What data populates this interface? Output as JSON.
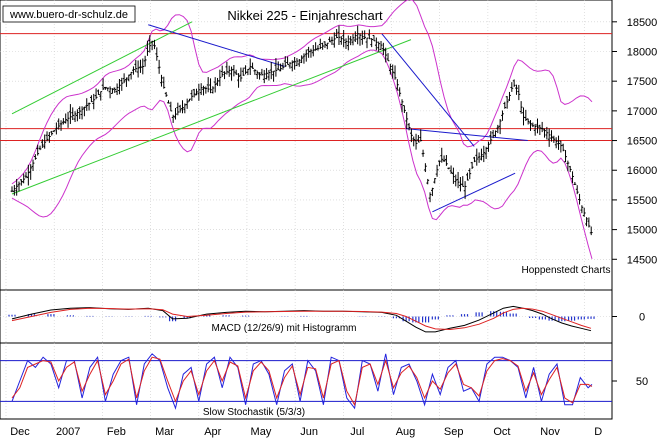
{
  "header": {
    "title": "Nikkei 225 - Einjahreschart",
    "watermark": "www.buero-dr-schulz.de"
  },
  "source_label": "Hoppenstedt Charts",
  "colors": {
    "price_bars": "#000000",
    "bollinger": "#cc33cc",
    "uptrend": "#33cc33",
    "downtrend": "#1a1acc",
    "support_resistance": "#dd2222",
    "macd_line": "#000000",
    "macd_signal": "#dd2222",
    "histogram": "#2233cc",
    "stoch_k": "#2222dd",
    "stoch_d": "#dd2222",
    "stoch_bands": "#1a1acc",
    "grid": "#cccccc"
  },
  "chart_data": [
    {
      "id": "price",
      "type": "ohlc",
      "title": "Nikkei 225 - Einjahreschart",
      "x_labels": [
        "Dec",
        "2007",
        "Feb",
        "Mar",
        "Apr",
        "May",
        "Jun",
        "Jul",
        "Aug",
        "Sep",
        "Oct",
        "Nov",
        "D"
      ],
      "y_ticks": [
        14500,
        15000,
        15500,
        16000,
        16500,
        17000,
        17500,
        18000,
        18500
      ],
      "ylim": [
        14050,
        18800
      ],
      "grid": true,
      "series": [
        {
          "name": "close",
          "x": [
            0,
            15,
            30,
            45,
            55,
            70,
            85,
            95,
            105,
            115,
            125,
            135,
            140,
            145,
            155,
            165,
            175,
            185,
            195,
            205,
            215,
            225,
            235,
            245,
            255,
            265,
            275,
            285,
            295,
            305,
            315,
            325,
            335,
            345,
            355,
            360,
            370,
            380,
            385,
            395,
            405,
            410,
            415,
            420,
            425,
            430,
            435,
            440,
            445,
            455,
            465,
            475,
            485,
            495,
            500,
            505,
            510,
            515,
            520,
            525,
            535,
            545,
            555,
            565,
            575,
            585,
            590,
            595
          ],
          "values": [
            15650,
            15900,
            16400,
            16700,
            16850,
            17000,
            17200,
            17400,
            17350,
            17500,
            17700,
            17750,
            18050,
            18200,
            17450,
            16900,
            17050,
            17250,
            17400,
            17350,
            17600,
            17700,
            17550,
            17750,
            17600,
            17650,
            17700,
            17800,
            17850,
            18000,
            18050,
            18150,
            18250,
            18150,
            18300,
            18250,
            18200,
            18100,
            17900,
            17500,
            16900,
            16600,
            16450,
            16500,
            16050,
            15550,
            15900,
            16200,
            16150,
            15850,
            15700,
            16150,
            16300,
            16600,
            16750,
            17000,
            17200,
            17450,
            17350,
            16900,
            16750,
            16700,
            16550,
            16400,
            15950,
            15400,
            15200,
            14950
          ]
        }
      ],
      "lines": {
        "uptrend_upper": {
          "x": [
            0,
            185
          ],
          "y": [
            16950,
            18500
          ]
        },
        "uptrend_lower": {
          "x": [
            0,
            410
          ],
          "y": [
            15600,
            18200
          ]
        },
        "downtrend_spring": {
          "x": [
            140,
            280
          ],
          "y": [
            18450,
            17750
          ]
        },
        "downtrend_summer": {
          "x": [
            380,
            475
          ],
          "y": [
            18300,
            16400
          ]
        },
        "triangle_upper": {
          "x": [
            405,
            530
          ],
          "y": [
            16700,
            16500
          ]
        },
        "triangle_lower": {
          "x": [
            432,
            517
          ],
          "y": [
            15300,
            15950
          ]
        },
        "resistance_high": 18300,
        "resistance_mid": 16700,
        "support_mid": 16500
      }
    },
    {
      "id": "macd",
      "type": "line",
      "title": "MACD (12/26/9) mit Histogramm",
      "y_ticks": [
        0
      ],
      "ylim": [
        -380,
        380
      ],
      "series": [
        {
          "name": "macd",
          "x": [
            0,
            20,
            40,
            60,
            80,
            100,
            120,
            140,
            155,
            165,
            180,
            200,
            220,
            240,
            260,
            280,
            300,
            320,
            340,
            360,
            380,
            395,
            405,
            415,
            425,
            435,
            450,
            465,
            480,
            495,
            505,
            515,
            525,
            535,
            545,
            555,
            565,
            575,
            585,
            595
          ],
          "values": [
            -40,
            40,
            110,
            140,
            150,
            130,
            120,
            140,
            100,
            -40,
            -30,
            40,
            70,
            90,
            80,
            90,
            100,
            90,
            90,
            80,
            70,
            20,
            -80,
            -180,
            -260,
            -260,
            -200,
            -150,
            -60,
            60,
            140,
            170,
            140,
            100,
            40,
            -40,
            -110,
            -160,
            -200,
            -240
          ]
        },
        {
          "name": "signal",
          "x": [
            0,
            20,
            40,
            60,
            80,
            100,
            120,
            140,
            155,
            165,
            180,
            200,
            220,
            240,
            260,
            280,
            300,
            320,
            340,
            360,
            380,
            395,
            405,
            415,
            425,
            435,
            450,
            465,
            480,
            495,
            505,
            515,
            525,
            535,
            545,
            555,
            565,
            575,
            585,
            595
          ],
          "values": [
            -70,
            0,
            70,
            120,
            140,
            135,
            125,
            130,
            115,
            40,
            0,
            20,
            50,
            75,
            80,
            85,
            90,
            90,
            90,
            85,
            75,
            50,
            0,
            -80,
            -160,
            -210,
            -220,
            -190,
            -130,
            -30,
            60,
            120,
            140,
            125,
            90,
            30,
            -30,
            -90,
            -150,
            -200
          ]
        },
        {
          "name": "histogram",
          "x": [
            0,
            20,
            40,
            60,
            80,
            100,
            120,
            140,
            155,
            165,
            180,
            200,
            220,
            240,
            260,
            280,
            300,
            320,
            340,
            360,
            380,
            395,
            405,
            415,
            425,
            435,
            450,
            465,
            480,
            495,
            505,
            515,
            525,
            535,
            545,
            555,
            565,
            575,
            585,
            595
          ],
          "values": [
            30,
            40,
            40,
            20,
            10,
            -5,
            -5,
            10,
            -15,
            -80,
            -30,
            20,
            20,
            15,
            0,
            5,
            10,
            0,
            0,
            -5,
            -5,
            -30,
            -80,
            -100,
            -100,
            -50,
            20,
            40,
            70,
            90,
            80,
            50,
            0,
            -25,
            -50,
            -70,
            -80,
            -70,
            -50,
            -40
          ]
        }
      ]
    },
    {
      "id": "stochastic",
      "type": "line",
      "title": "Slow Stochastik (5/3/3)",
      "y_ticks": [
        50
      ],
      "ylim": [
        0,
        100
      ],
      "bands": [
        80,
        20
      ],
      "series": [
        {
          "name": "%K",
          "x": [
            0,
            8,
            16,
            24,
            32,
            40,
            48,
            56,
            64,
            72,
            80,
            88,
            96,
            104,
            112,
            120,
            128,
            136,
            144,
            152,
            160,
            168,
            176,
            184,
            192,
            200,
            208,
            216,
            224,
            232,
            240,
            248,
            256,
            264,
            272,
            280,
            288,
            296,
            304,
            312,
            320,
            328,
            336,
            344,
            352,
            360,
            368,
            376,
            384,
            392,
            400,
            408,
            416,
            424,
            432,
            440,
            448,
            456,
            464,
            472,
            480,
            488,
            496,
            504,
            512,
            520,
            528,
            536,
            544,
            552,
            560,
            568,
            576,
            584,
            592,
            596
          ],
          "values": [
            20,
            50,
            80,
            70,
            85,
            75,
            40,
            80,
            80,
            25,
            70,
            85,
            20,
            60,
            80,
            85,
            15,
            75,
            90,
            80,
            40,
            10,
            60,
            70,
            20,
            75,
            85,
            40,
            85,
            70,
            15,
            75,
            80,
            60,
            15,
            65,
            75,
            20,
            80,
            65,
            15,
            85,
            80,
            25,
            10,
            80,
            75,
            35,
            90,
            30,
            70,
            75,
            50,
            15,
            60,
            30,
            70,
            80,
            35,
            40,
            20,
            75,
            85,
            85,
            80,
            70,
            25,
            70,
            20,
            60,
            75,
            15,
            15,
            55,
            40,
            45
          ]
        },
        {
          "name": "%D",
          "x": [
            0,
            8,
            16,
            24,
            32,
            40,
            48,
            56,
            64,
            72,
            80,
            88,
            96,
            104,
            112,
            120,
            128,
            136,
            144,
            152,
            160,
            168,
            176,
            184,
            192,
            200,
            208,
            216,
            224,
            232,
            240,
            248,
            256,
            264,
            272,
            280,
            288,
            296,
            304,
            312,
            320,
            328,
            336,
            344,
            352,
            360,
            368,
            376,
            384,
            392,
            400,
            408,
            416,
            424,
            432,
            440,
            448,
            456,
            464,
            472,
            480,
            488,
            496,
            504,
            512,
            520,
            528,
            536,
            544,
            552,
            560,
            568,
            576,
            584,
            592,
            596
          ],
          "values": [
            25,
            40,
            70,
            75,
            80,
            78,
            50,
            70,
            78,
            35,
            60,
            80,
            30,
            50,
            75,
            82,
            25,
            65,
            85,
            82,
            50,
            20,
            50,
            65,
            30,
            65,
            80,
            50,
            78,
            72,
            25,
            65,
            78,
            65,
            25,
            55,
            72,
            30,
            70,
            68,
            25,
            75,
            80,
            35,
            15,
            70,
            75,
            45,
            80,
            40,
            62,
            72,
            55,
            25,
            50,
            38,
            62,
            75,
            45,
            40,
            28,
            65,
            80,
            83,
            80,
            72,
            35,
            62,
            30,
            52,
            70,
            25,
            18,
            45,
            45,
            42
          ]
        }
      ]
    }
  ]
}
